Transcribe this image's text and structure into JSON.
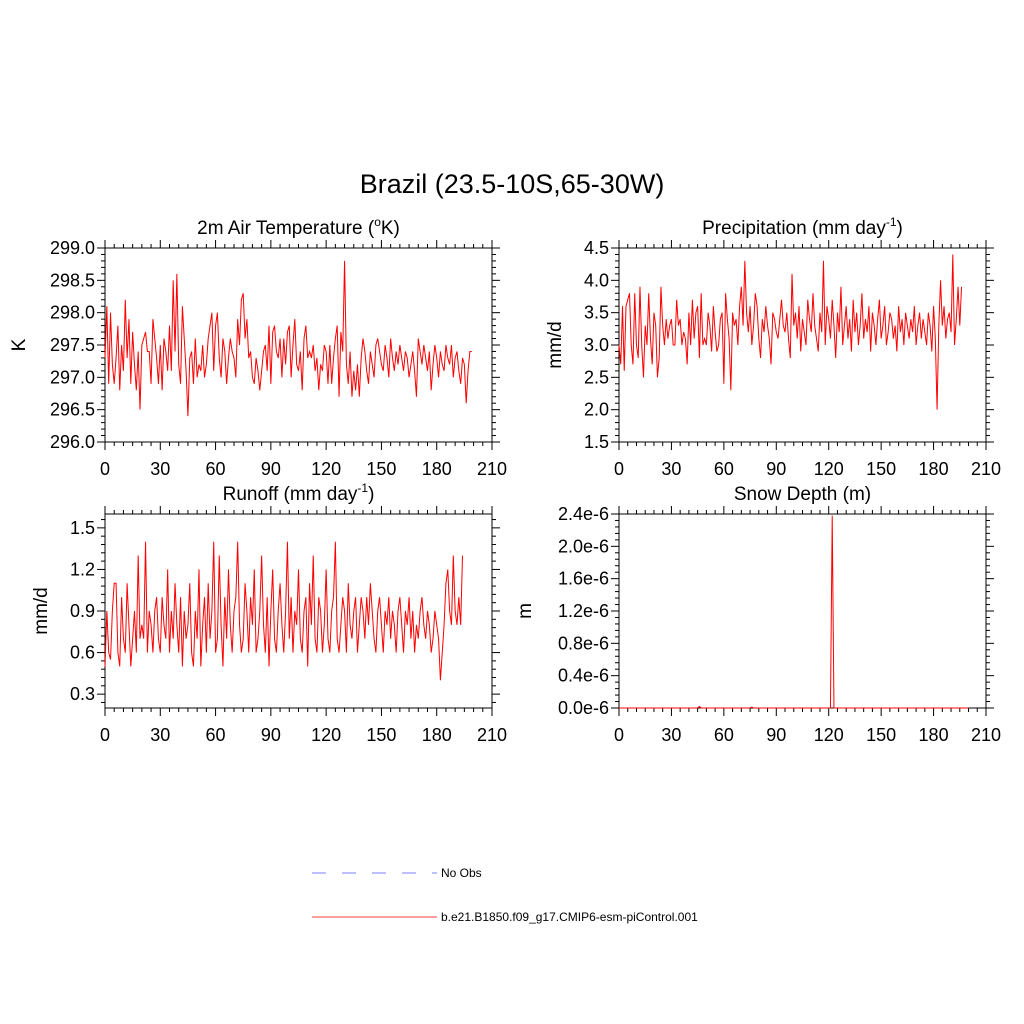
{
  "figure": {
    "title": "Brazil (23.5-10S,65-30W)",
    "legend": [
      {
        "label": "No Obs",
        "color": "#9999ff",
        "style": "dashed"
      },
      {
        "label": "b.e21.B1850.f09_g17.CMIP6-esm-piControl.001",
        "color": "#ff6666",
        "style": "solid"
      }
    ]
  },
  "chart_data": [
    {
      "type": "line",
      "title": "2m Air Temperature (",
      "title_sup": "o",
      "title_tail": "K)",
      "xlabel": "",
      "ylabel": "K",
      "xlim": [
        0,
        210
      ],
      "ylim": [
        296.0,
        299.0
      ],
      "xticks": [
        0,
        30,
        60,
        90,
        120,
        150,
        180,
        210
      ],
      "xtick_labels": [
        "0",
        "30",
        "60",
        "90",
        "120",
        "150",
        "180",
        "210"
      ],
      "yticks": [
        296.0,
        296.5,
        297.0,
        297.5,
        298.0,
        298.5,
        299.0
      ],
      "ytick_labels": [
        "296.0",
        "296.5",
        "297.0",
        "297.5",
        "298.0",
        "298.5",
        "299.0"
      ],
      "grid": false,
      "series": [
        {
          "color": "#ff0000",
          "values": [
            297.3,
            298.1,
            296.9,
            298.0,
            297.2,
            296.9,
            297.3,
            297.8,
            296.8,
            297.5,
            297.1,
            298.2,
            297.3,
            297.9,
            296.9,
            297.7,
            297.2,
            296.8,
            297.4,
            296.5,
            297.5,
            297.6,
            297.7,
            297.4,
            297.4,
            296.9,
            297.9,
            297.6,
            297.3,
            296.9,
            297.5,
            296.8,
            297.6,
            297.4,
            297.1,
            297.8,
            297.1,
            298.5,
            297.4,
            298.6,
            297.2,
            296.9,
            298.1,
            297.6,
            297.1,
            296.4,
            297.3,
            297.4,
            296.9,
            297.6,
            297.0,
            297.2,
            297.1,
            297.5,
            297.0,
            297.2,
            297.6,
            297.8,
            298.0,
            297.1,
            297.8,
            298.0,
            297.3,
            297.0,
            297.6,
            297.4,
            296.9,
            297.3,
            297.6,
            297.4,
            297.3,
            297.0,
            297.9,
            297.5,
            298.2,
            298.3,
            297.6,
            297.9,
            297.3,
            297.4,
            297.0,
            296.9,
            297.3,
            297.1,
            296.8,
            297.1,
            297.4,
            297.5,
            297.1,
            297.8,
            296.9,
            297.7,
            297.8,
            297.4,
            297.3,
            297.6,
            297.0,
            297.6,
            297.2,
            297.7,
            297.8,
            297.0,
            297.5,
            297.9,
            297.2,
            297.1,
            297.4,
            296.8,
            297.6,
            297.8,
            297.3,
            297.4,
            297.3,
            297.5,
            297.1,
            297.3,
            296.8,
            297.2,
            297.1,
            297.5,
            297.4,
            296.9,
            297.5,
            296.9,
            297.3,
            297.6,
            297.8,
            296.7,
            297.7,
            297.4,
            298.8,
            297.2,
            296.9,
            297.4,
            296.7,
            297.1,
            296.8,
            297.2,
            296.7,
            297.3,
            297.6,
            297.4,
            297.1,
            296.9,
            297.4,
            297.2,
            297.0,
            297.5,
            297.6,
            297.4,
            297.2,
            297.1,
            297.5,
            297.3,
            297.0,
            297.6,
            297.3,
            297.1,
            297.4,
            297.2,
            297.5,
            297.3,
            297.1,
            297.4,
            297.3,
            297.0,
            297.2,
            297.4,
            297.1,
            296.7,
            297.6,
            297.4,
            297.2,
            297.5,
            297.3,
            297.1,
            297.4,
            296.8,
            297.2,
            297.5,
            297.3,
            297.0,
            297.4,
            297.2,
            297.1,
            297.5,
            297.3,
            297.2,
            297.5,
            297.0,
            297.3,
            297.4,
            297.1,
            296.9,
            297.3,
            297.2,
            296.6,
            297.1,
            297.4,
            297.4
          ]
        }
      ]
    },
    {
      "type": "line",
      "title": "Precipitation (mm day",
      "title_sup": "-1",
      "title_tail": ")",
      "xlabel": "",
      "ylabel": "mm/d",
      "xlim": [
        0,
        210
      ],
      "ylim": [
        1.5,
        4.5
      ],
      "xticks": [
        0,
        30,
        60,
        90,
        120,
        150,
        180,
        210
      ],
      "xtick_labels": [
        "0",
        "30",
        "60",
        "90",
        "120",
        "150",
        "180",
        "210"
      ],
      "yticks": [
        1.5,
        2.0,
        2.5,
        3.0,
        3.5,
        4.0,
        4.5
      ],
      "ytick_labels": [
        "1.5",
        "2.0",
        "2.5",
        "3.0",
        "3.5",
        "4.0",
        "4.5"
      ],
      "grid": false,
      "series": [
        {
          "color": "#ff0000",
          "values": [
            3.0,
            2.7,
            3.6,
            2.6,
            3.6,
            3.7,
            3.8,
            3.0,
            2.7,
            3.8,
            3.0,
            2.8,
            3.9,
            3.0,
            2.5,
            3.3,
            3.0,
            3.8,
            3.1,
            2.7,
            3.5,
            3.3,
            2.5,
            2.8,
            3.9,
            3.3,
            3.0,
            3.4,
            3.1,
            3.3,
            3.4,
            3.0,
            3.0,
            3.7,
            3.3,
            3.4,
            3.0,
            3.2,
            3.1,
            2.7,
            3.5,
            3.0,
            3.7,
            3.1,
            3.5,
            3.6,
            2.8,
            3.8,
            3.0,
            3.1,
            3.0,
            3.5,
            3.3,
            2.9,
            3.6,
            3.2,
            2.9,
            3.0,
            3.4,
            3.5,
            2.4,
            3.8,
            3.4,
            3.1,
            2.3,
            3.5,
            3.3,
            3.4,
            3.0,
            3.6,
            3.9,
            3.3,
            4.3,
            3.5,
            3.2,
            3.6,
            3.0,
            3.3,
            3.8,
            3.6,
            3.1,
            2.8,
            3.4,
            3.2,
            3.6,
            3.3,
            3.1,
            2.7,
            3.5,
            3.4,
            3.2,
            3.1,
            3.4,
            3.7,
            3.3,
            3.2,
            3.5,
            3.1,
            2.8,
            4.1,
            3.3,
            3.5,
            3.1,
            3.6,
            2.9,
            3.4,
            3.2,
            3.0,
            3.7,
            3.4,
            3.2,
            3.8,
            3.3,
            3.1,
            2.9,
            3.5,
            3.2,
            4.3,
            3.0,
            3.6,
            3.4,
            3.1,
            3.7,
            3.3,
            2.8,
            3.5,
            3.2,
            3.9,
            3.0,
            3.3,
            3.6,
            3.1,
            3.4,
            2.9,
            3.7,
            3.2,
            3.5,
            3.0,
            3.3,
            3.8,
            3.1,
            3.4,
            3.2,
            3.6,
            2.9,
            3.5,
            3.3,
            3.0,
            3.4,
            3.7,
            3.1,
            3.3,
            3.6,
            3.0,
            3.2,
            3.5,
            3.4,
            3.1,
            3.3,
            2.9,
            3.6,
            3.2,
            3.4,
            3.0,
            3.5,
            3.3,
            3.1,
            3.4,
            3.2,
            3.6,
            3.0,
            3.3,
            3.5,
            3.1,
            3.4,
            3.2,
            3.0,
            3.5,
            3.3,
            2.9,
            3.6,
            3.1,
            2.0,
            3.3,
            4.0,
            3.3,
            3.6,
            3.1,
            3.4,
            3.5,
            3.2,
            4.4,
            3.0,
            3.4,
            3.9,
            3.3,
            3.9
          ]
        }
      ]
    },
    {
      "type": "line",
      "title": "Runoff (mm day",
      "title_sup": "-1",
      "title_tail": ")",
      "xlabel": "",
      "ylabel": "mm/d",
      "xlim": [
        0,
        210
      ],
      "ylim": [
        0.2,
        1.6
      ],
      "xticks": [
        0,
        30,
        60,
        90,
        120,
        150,
        180,
        210
      ],
      "xtick_labels": [
        "0",
        "30",
        "60",
        "90",
        "120",
        "150",
        "180",
        "210"
      ],
      "yticks": [
        0.3,
        0.6,
        0.9,
        1.2,
        1.5
      ],
      "ytick_labels": [
        "0.3",
        "0.6",
        "0.9",
        "1.2",
        "1.5"
      ],
      "grid": false,
      "series": [
        {
          "color": "#ff0000",
          "values": [
            0.5,
            0.9,
            0.6,
            0.55,
            0.9,
            1.1,
            1.1,
            0.6,
            0.5,
            1.0,
            0.7,
            0.6,
            1.1,
            0.8,
            0.5,
            0.7,
            0.9,
            0.6,
            1.3,
            0.7,
            0.8,
            0.7,
            1.4,
            0.6,
            0.9,
            0.8,
            0.6,
            0.9,
            1.0,
            0.7,
            0.6,
            1.0,
            0.8,
            0.7,
            1.2,
            0.6,
            0.9,
            0.7,
            1.1,
            0.8,
            0.6,
            1.0,
            0.5,
            0.9,
            0.7,
            0.8,
            1.1,
            0.6,
            0.5,
            0.9,
            0.7,
            1.2,
            0.5,
            0.8,
            1.0,
            0.6,
            1.1,
            0.7,
            0.9,
            1.4,
            0.6,
            0.7,
            1.3,
            0.8,
            0.5,
            1.0,
            0.7,
            1.2,
            0.8,
            0.6,
            0.9,
            1.0,
            1.4,
            0.8,
            0.6,
            0.7,
            1.1,
            0.9,
            0.6,
            1.0,
            0.8,
            1.2,
            0.6,
            0.7,
            0.9,
            1.3,
            0.8,
            0.6,
            1.0,
            0.5,
            0.9,
            1.2,
            0.7,
            0.6,
            0.9,
            1.1,
            0.8,
            0.6,
            0.9,
            1.4,
            0.7,
            1.0,
            0.6,
            0.9,
            0.8,
            1.2,
            0.7,
            0.6,
            0.9,
            1.0,
            0.5,
            1.1,
            0.8,
            1.3,
            0.7,
            0.6,
            1.0,
            0.9,
            0.6,
            0.8,
            1.2,
            0.7,
            0.6,
            0.9,
            1.0,
            1.4,
            0.7,
            0.6,
            0.8,
            1.0,
            0.9,
            0.6,
            1.1,
            0.8,
            0.7,
            0.9,
            1.0,
            0.6,
            0.8,
            1.0,
            0.9,
            0.7,
            1.0,
            0.8,
            1.1,
            0.9,
            0.7,
            0.6,
            0.9,
            1.0,
            0.8,
            0.6,
            0.9,
            0.8,
            1.0,
            0.7,
            0.9,
            0.8,
            0.6,
            0.9,
            1.0,
            0.8,
            0.6,
            0.9,
            0.8,
            1.0,
            0.7,
            0.9,
            0.6,
            0.8,
            0.7,
            0.9,
            1.0,
            0.8,
            0.7,
            0.9,
            0.8,
            0.6,
            0.7,
            0.9,
            0.8,
            0.7,
            0.4,
            0.6,
            0.8,
            1.1,
            1.2,
            0.9,
            0.8,
            1.3,
            0.9,
            0.8,
            1.0,
            0.8,
            1.3
          ]
        }
      ]
    },
    {
      "type": "line",
      "title": "Snow Depth (m)",
      "title_sup": "",
      "title_tail": "",
      "xlabel": "",
      "ylabel": "m",
      "xlim": [
        0,
        210
      ],
      "ylim": [
        0.0,
        2.4e-06
      ],
      "xticks": [
        0,
        30,
        60,
        90,
        120,
        150,
        180,
        210
      ],
      "xtick_labels": [
        "0",
        "30",
        "60",
        "90",
        "120",
        "150",
        "180",
        "210"
      ],
      "yticks": [
        0.0,
        4e-07,
        8e-07,
        1.2e-06,
        1.6e-06,
        2e-06,
        2.4e-06
      ],
      "ytick_labels": [
        "0.0e-6",
        "0.4e-6",
        "0.8e-6",
        "1.2e-6",
        "1.6e-6",
        "2.0e-6",
        "2.4e-6"
      ],
      "grid": false,
      "series": [
        {
          "color": "#ff0000",
          "points": [
            [
              0,
              0
            ],
            [
              45,
              0
            ],
            [
              46,
              2e-08
            ],
            [
              47,
              0
            ],
            [
              75,
              0
            ],
            [
              76,
              1e-08
            ],
            [
              77,
              0
            ],
            [
              121,
              0
            ],
            [
              122,
              2.38e-06
            ],
            [
              123,
              0
            ],
            [
              200,
              0
            ]
          ]
        }
      ]
    }
  ]
}
